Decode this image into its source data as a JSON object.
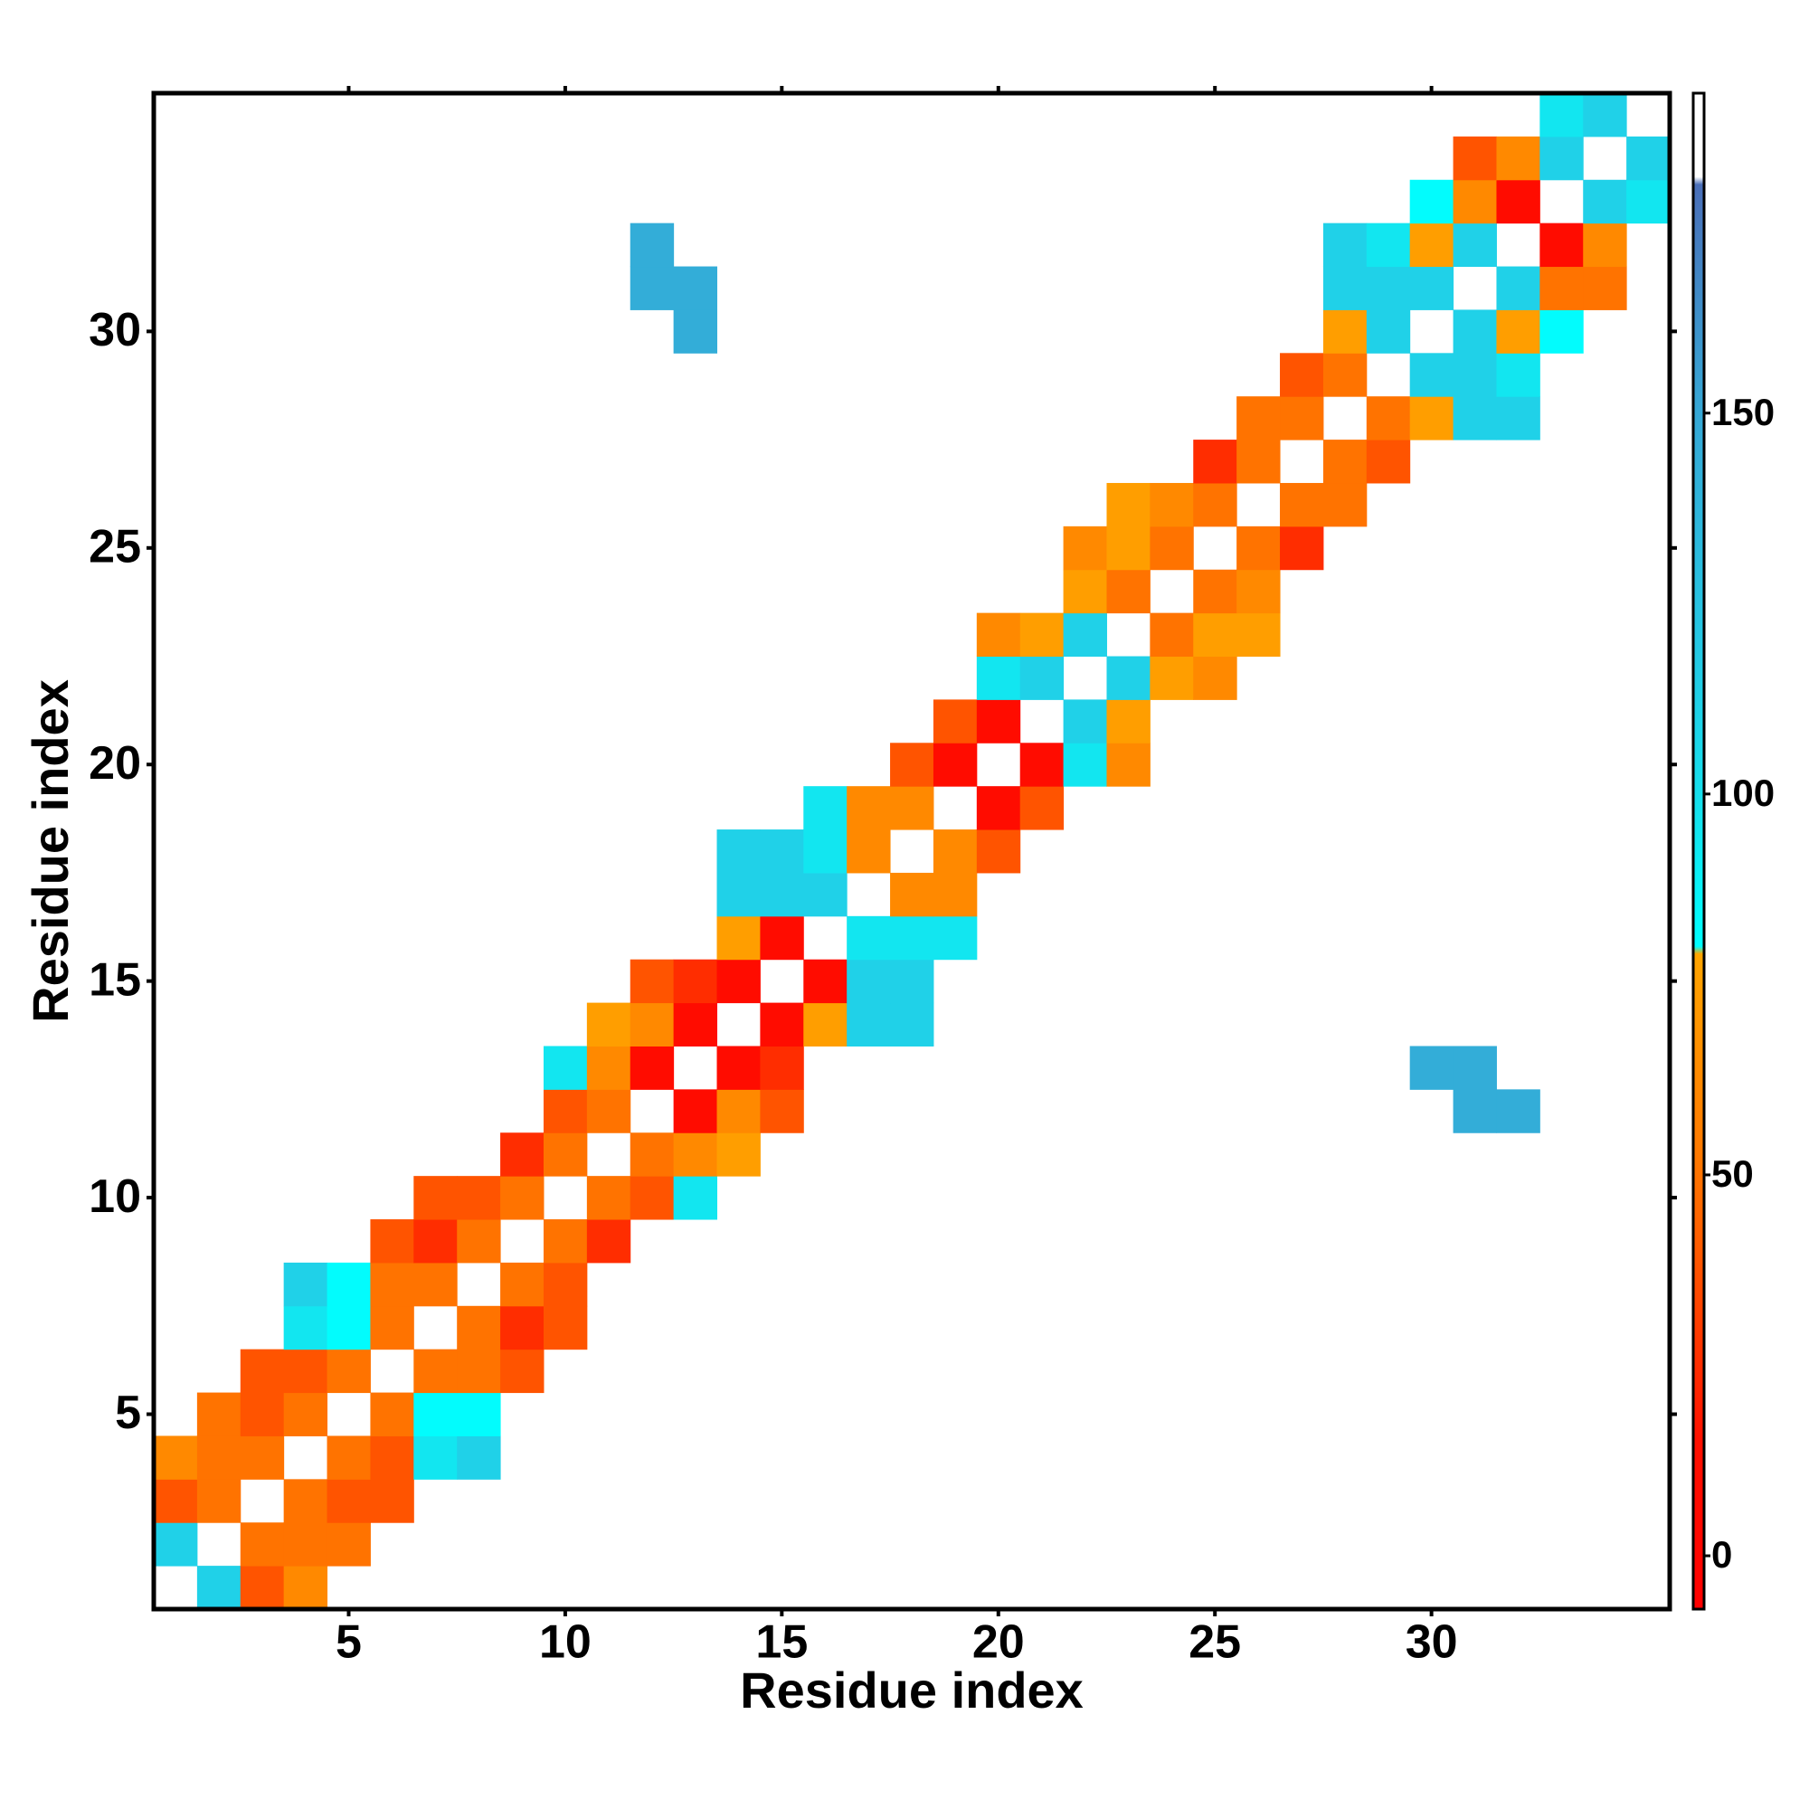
{
  "chart_data": {
    "type": "heatmap",
    "xlabel": "Residue index",
    "ylabel": "Residue index",
    "xlim": [
      0.5,
      35.5
    ],
    "ylim": [
      0.5,
      35.5
    ],
    "xticks": [
      5,
      10,
      15,
      20,
      25,
      30
    ],
    "yticks": [
      5,
      10,
      15,
      20,
      25,
      30
    ],
    "colorscale": [
      [
        -7,
        "#ff0000"
      ],
      [
        15,
        "#ff1000"
      ],
      [
        30,
        "#ff3c00"
      ],
      [
        40,
        "#ff5a00"
      ],
      [
        52,
        "#ff7800"
      ],
      [
        64,
        "#ff8c00"
      ],
      [
        79,
        "#ffa500"
      ],
      [
        80,
        "#00ffff"
      ],
      [
        95,
        "#12e6f0"
      ],
      [
        115,
        "#22cde6"
      ],
      [
        150,
        "#36a8d6"
      ],
      [
        180,
        "#4a6fb8"
      ],
      [
        181,
        "#ffffff"
      ],
      [
        192,
        "#ffffff"
      ]
    ],
    "colorbar": {
      "lim": [
        -7,
        192
      ],
      "ticks": [
        0,
        50,
        100,
        150
      ]
    },
    "x": [
      2,
      3,
      4,
      1,
      3,
      4,
      5,
      1,
      2,
      4,
      5,
      6,
      1,
      2,
      3,
      5,
      6,
      7,
      8,
      2,
      3,
      4,
      6,
      7,
      8,
      3,
      4,
      5,
      7,
      8,
      9,
      4,
      5,
      6,
      8,
      9,
      10,
      4,
      5,
      6,
      7,
      9,
      10,
      6,
      7,
      8,
      10,
      11,
      7,
      8,
      9,
      11,
      12,
      13,
      9,
      10,
      12,
      13,
      14,
      10,
      11,
      13,
      14,
      15,
      31,
      32,
      10,
      11,
      12,
      14,
      15,
      30,
      31,
      11,
      12,
      13,
      15,
      16,
      17,
      18,
      12,
      13,
      14,
      16,
      17,
      18,
      14,
      15,
      17,
      18,
      19,
      14,
      15,
      16,
      18,
      19,
      14,
      15,
      16,
      17,
      19,
      20,
      16,
      17,
      18,
      20,
      21,
      18,
      19,
      21,
      22,
      23,
      19,
      20,
      22,
      23,
      20,
      21,
      23,
      24,
      25,
      20,
      21,
      22,
      24,
      25,
      26,
      22,
      23,
      25,
      26,
      22,
      23,
      24,
      26,
      27,
      23,
      24,
      25,
      27,
      28,
      25,
      26,
      28,
      29,
      26,
      27,
      29,
      30,
      31,
      32,
      27,
      28,
      30,
      31,
      32,
      13,
      28,
      29,
      31,
      32,
      33,
      12,
      13,
      28,
      29,
      30,
      32,
      33,
      34,
      12,
      28,
      29,
      30,
      31,
      33,
      34,
      30,
      31,
      32,
      34,
      35,
      31,
      32,
      33,
      35,
      33,
      34
    ],
    "y": [
      1,
      1,
      1,
      2,
      2,
      2,
      2,
      3,
      3,
      3,
      3,
      3,
      4,
      4,
      4,
      4,
      4,
      4,
      4,
      5,
      5,
      5,
      5,
      5,
      5,
      6,
      6,
      6,
      6,
      6,
      6,
      7,
      7,
      7,
      7,
      7,
      7,
      8,
      8,
      8,
      8,
      8,
      8,
      9,
      9,
      9,
      9,
      9,
      10,
      10,
      10,
      10,
      10,
      10,
      11,
      11,
      11,
      11,
      11,
      12,
      12,
      12,
      12,
      12,
      12,
      12,
      13,
      13,
      13,
      13,
      13,
      13,
      13,
      14,
      14,
      14,
      14,
      14,
      14,
      14,
      15,
      15,
      15,
      15,
      15,
      15,
      16,
      16,
      16,
      16,
      16,
      17,
      17,
      17,
      17,
      17,
      18,
      18,
      18,
      18,
      18,
      18,
      19,
      19,
      19,
      19,
      19,
      20,
      20,
      20,
      20,
      20,
      21,
      21,
      21,
      21,
      22,
      22,
      22,
      22,
      22,
      23,
      23,
      23,
      23,
      23,
      23,
      24,
      24,
      24,
      24,
      25,
      25,
      25,
      25,
      25,
      26,
      26,
      26,
      26,
      26,
      27,
      27,
      27,
      27,
      28,
      28,
      28,
      28,
      28,
      28,
      29,
      29,
      29,
      29,
      29,
      30,
      30,
      30,
      30,
      30,
      30,
      31,
      31,
      31,
      31,
      31,
      31,
      31,
      31,
      32,
      32,
      32,
      32,
      32,
      32,
      32,
      33,
      33,
      33,
      33,
      33,
      34,
      34,
      34,
      34,
      35,
      35
    ],
    "values": [
      112,
      38,
      62,
      112,
      50,
      50,
      50,
      38,
      50,
      50,
      38,
      38,
      62,
      50,
      50,
      50,
      38,
      95,
      112,
      50,
      38,
      50,
      50,
      82,
      82,
      38,
      38,
      50,
      50,
      50,
      38,
      95,
      82,
      50,
      50,
      25,
      38,
      112,
      82,
      50,
      50,
      50,
      38,
      38,
      25,
      50,
      50,
      25,
      38,
      38,
      50,
      50,
      38,
      95,
      25,
      50,
      50,
      62,
      75,
      38,
      50,
      10,
      62,
      38,
      145,
      145,
      95,
      62,
      10,
      10,
      25,
      145,
      145,
      75,
      62,
      10,
      10,
      75,
      112,
      112,
      38,
      25,
      10,
      10,
      112,
      112,
      75,
      10,
      95,
      95,
      95,
      112,
      112,
      112,
      62,
      62,
      112,
      112,
      95,
      62,
      62,
      38,
      95,
      62,
      62,
      10,
      38,
      38,
      10,
      10,
      95,
      62,
      38,
      10,
      112,
      75,
      95,
      112,
      112,
      75,
      62,
      62,
      75,
      112,
      50,
      75,
      75,
      75,
      50,
      50,
      62,
      62,
      75,
      50,
      50,
      25,
      75,
      62,
      50,
      50,
      50,
      25,
      50,
      50,
      38,
      50,
      50,
      50,
      75,
      112,
      112,
      38,
      50,
      112,
      112,
      95,
      145,
      75,
      112,
      112,
      75,
      82,
      145,
      145,
      112,
      112,
      112,
      112,
      50,
      50,
      145,
      112,
      95,
      75,
      112,
      10,
      62,
      82,
      62,
      10,
      112,
      95,
      38,
      62,
      112,
      112,
      95,
      112
    ]
  }
}
